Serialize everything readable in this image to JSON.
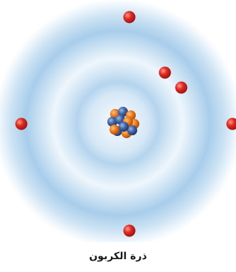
{
  "caption": "ذرة الكربون",
  "atom": {
    "element": "carbon",
    "electron_count": 6,
    "nucleus": {
      "proton_color": "#e8741c",
      "neutron_color": "#3b5f9e"
    },
    "electron_color": "#d9221c",
    "cloud_color": "#bcd8ef"
  }
}
